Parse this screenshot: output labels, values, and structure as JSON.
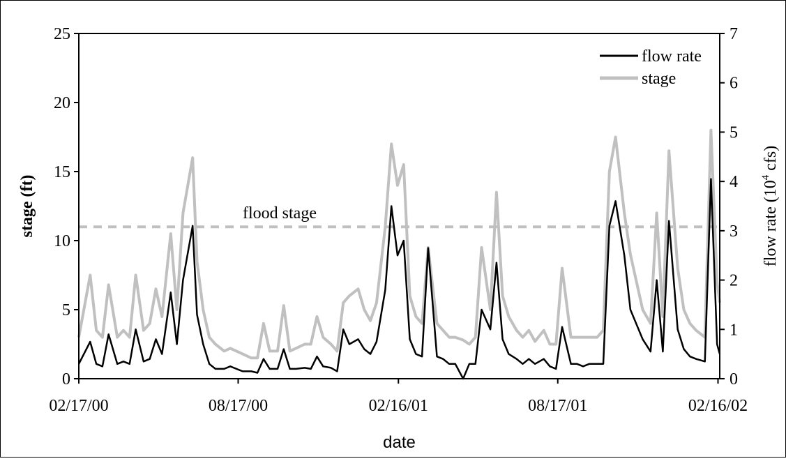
{
  "chart_data": {
    "type": "line",
    "x_label": "date",
    "y_label": "stage (ft)",
    "y2_label": {
      "text": "flow rate (10",
      "sup": "4",
      "tail": " cfs)"
    },
    "xlim": [
      "02/17/00",
      "02/18/02"
    ],
    "xticks": [
      "02/17/00",
      "08/17/00",
      "02/16/01",
      "08/17/01",
      "02/16/02"
    ],
    "ylim": [
      0,
      25
    ],
    "yticks": [
      0,
      5,
      10,
      15,
      20,
      25
    ],
    "y2lim": [
      0,
      7
    ],
    "y2ticks": [
      0,
      1,
      2,
      3,
      4,
      5,
      6,
      7
    ],
    "legend": "upper right",
    "flood_stage": {
      "value": 11,
      "label": "flood stage",
      "color": "#c0c0c0"
    },
    "x": [
      "02/17/00",
      "03/01/00",
      "03/08/00",
      "03/15/00",
      "03/22/00",
      "04/01/00",
      "04/08/00",
      "04/15/00",
      "04/22/00",
      "05/01/00",
      "05/08/00",
      "05/15/00",
      "05/22/00",
      "06/01/00",
      "06/08/00",
      "06/15/00",
      "06/26/00",
      "07/01/00",
      "07/08/00",
      "07/15/00",
      "07/22/00",
      "08/01/00",
      "08/08/00",
      "08/15/00",
      "08/22/00",
      "09/01/00",
      "09/08/00",
      "09/15/00",
      "09/22/00",
      "10/01/00",
      "10/08/00",
      "10/15/00",
      "10/22/00",
      "11/01/00",
      "11/08/00",
      "11/15/00",
      "11/22/00",
      "12/01/00",
      "12/08/00",
      "12/15/00",
      "12/22/00",
      "01/01/01",
      "01/08/01",
      "01/15/01",
      "01/22/01",
      "02/01/01",
      "02/08/01",
      "02/15/01",
      "02/22/01",
      "03/01/01",
      "03/08/01",
      "03/15/01",
      "03/22/01",
      "04/01/01",
      "04/08/01",
      "04/15/01",
      "04/22/01",
      "05/01/01",
      "05/08/01",
      "05/15/01",
      "05/22/01",
      "06/01/01",
      "06/08/01",
      "06/15/01",
      "06/22/01",
      "07/01/01",
      "07/08/01",
      "07/15/01",
      "07/22/01",
      "08/01/01",
      "08/08/01",
      "08/15/01",
      "08/22/01",
      "09/01/01",
      "09/08/01",
      "09/15/01",
      "09/22/01",
      "10/01/01",
      "10/08/01",
      "10/15/01",
      "10/22/01",
      "11/01/01",
      "11/08/01",
      "11/15/01",
      "11/22/01",
      "12/01/01",
      "12/08/01",
      "12/15/01",
      "12/22/01",
      "01/01/02",
      "01/08/02",
      "01/15/02",
      "01/22/02",
      "02/01/02",
      "02/08/02",
      "02/15/02",
      "02/18/02"
    ],
    "series": [
      {
        "name": "flow rate",
        "color": "#000000",
        "axis": "y2",
        "values": [
          0.3,
          0.75,
          0.3,
          0.25,
          0.9,
          0.3,
          0.35,
          0.3,
          1.0,
          0.35,
          0.4,
          0.8,
          0.5,
          1.75,
          0.7,
          2.0,
          3.1,
          1.3,
          0.7,
          0.3,
          0.2,
          0.2,
          0.25,
          0.2,
          0.15,
          0.15,
          0.12,
          0.4,
          0.2,
          0.2,
          0.6,
          0.2,
          0.2,
          0.22,
          0.2,
          0.45,
          0.25,
          0.22,
          0.15,
          1.0,
          0.7,
          0.8,
          0.6,
          0.5,
          0.75,
          1.8,
          3.5,
          2.5,
          2.8,
          0.8,
          0.5,
          0.45,
          2.65,
          0.45,
          0.4,
          0.3,
          0.3,
          0,
          0.3,
          0.3,
          1.4,
          1.0,
          2.35,
          0.8,
          0.5,
          0.4,
          0.3,
          0.4,
          0.3,
          0.4,
          0.25,
          0.2,
          1.05,
          0.3,
          0.3,
          0.25,
          0.3,
          0.3,
          0.3,
          3.1,
          3.6,
          2.5,
          1.4,
          1.1,
          0.8,
          0.55,
          2.0,
          0.55,
          3.2,
          1.0,
          0.6,
          0.45,
          0.4,
          0.35,
          4.05,
          0.7,
          0.5
        ]
      },
      {
        "name": "stage",
        "color": "#c0c0c0",
        "values": [
          3,
          7.5,
          3.5,
          3.0,
          6.8,
          3.0,
          3.5,
          3.0,
          7.5,
          3.5,
          4.0,
          6.5,
          4.5,
          10.5,
          5,
          12,
          16,
          8.5,
          5,
          3,
          2.5,
          2.0,
          2.2,
          2.0,
          1.8,
          1.5,
          1.5,
          4,
          2.0,
          2.0,
          5.3,
          2.0,
          2.2,
          2.5,
          2.5,
          4.5,
          3,
          2.5,
          2.0,
          5.5,
          6,
          6.5,
          5,
          4.2,
          5.5,
          11,
          17,
          14,
          15.5,
          6,
          4.5,
          4,
          9.5,
          4,
          3.5,
          3,
          3,
          2.8,
          2.5,
          3,
          9.5,
          5,
          13.5,
          6,
          4.5,
          3.5,
          3,
          3.5,
          2.7,
          3.5,
          2.5,
          2.5,
          8,
          3,
          3,
          3,
          3,
          3,
          3.5,
          15,
          17.5,
          12,
          9,
          7,
          5,
          4,
          12,
          4.5,
          16.5,
          8,
          5,
          4,
          3.5,
          3,
          18,
          7,
          5.5
        ]
      }
    ]
  }
}
